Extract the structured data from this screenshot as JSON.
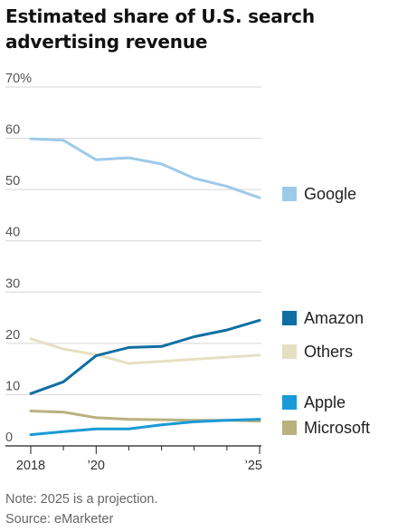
{
  "title": "Estimated share of U.S. search advertising revenue",
  "note": "Note: 2025 is a projection.",
  "source": "Source: eMarketer",
  "chart_data": {
    "type": "line",
    "title": "Estimated share of U.S. search advertising revenue",
    "x": [
      2018,
      2019,
      2020,
      2021,
      2022,
      2023,
      2024,
      2025
    ],
    "x_tick_values": [
      2018,
      2020,
      2025
    ],
    "x_tick_labels": [
      "2018",
      "’20",
      "’25"
    ],
    "xlim": [
      2018,
      2025
    ],
    "y_tick_values": [
      0,
      10,
      20,
      30,
      40,
      50,
      60,
      70
    ],
    "y_tick_labels": [
      "0",
      "10",
      "20",
      "30",
      "40",
      "50",
      "60",
      "70%"
    ],
    "ylim": [
      0,
      70
    ],
    "grid": true,
    "legend_placement": "right",
    "series": [
      {
        "name": "Google",
        "color": "#9ecae9",
        "values": [
          59.9,
          59.6,
          55.8,
          56.2,
          55.0,
          52.2,
          50.6,
          48.4
        ]
      },
      {
        "name": "Amazon",
        "color": "#0f6fa3",
        "values": [
          10.2,
          12.5,
          17.6,
          19.2,
          19.4,
          21.3,
          22.6,
          24.5
        ]
      },
      {
        "name": "Others",
        "color": "#e6e0c3",
        "values": [
          20.9,
          18.9,
          17.8,
          16.1,
          16.5,
          16.9,
          17.3,
          17.7
        ]
      },
      {
        "name": "Apple",
        "color": "#1a9ad6",
        "values": [
          2.2,
          2.8,
          3.3,
          3.3,
          4.1,
          4.7,
          5.0,
          5.2
        ]
      },
      {
        "name": "Microsoft",
        "color": "#b9b27f",
        "values": [
          6.8,
          6.6,
          5.5,
          5.2,
          5.1,
          5.0,
          5.0,
          4.8
        ]
      }
    ]
  }
}
